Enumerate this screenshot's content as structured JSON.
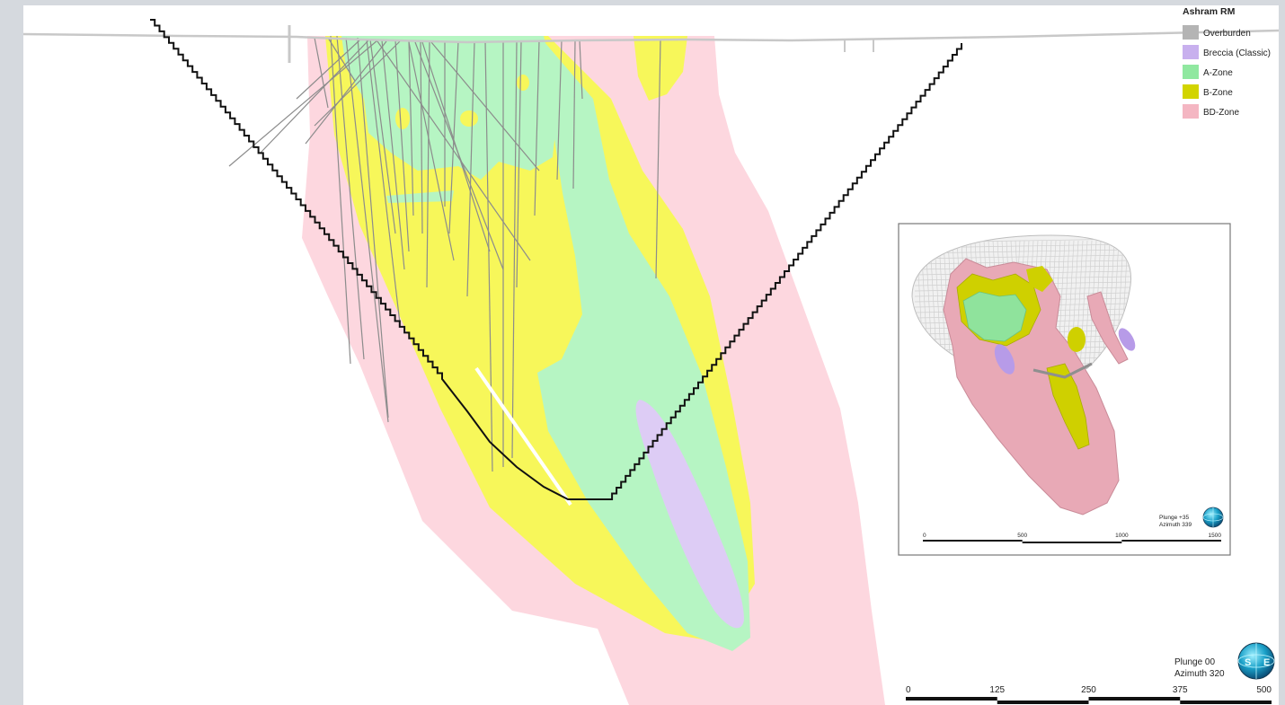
{
  "legend": {
    "title": "Ashram RM",
    "items": [
      {
        "label": "Overburden",
        "color": "#b4b4b4"
      },
      {
        "label": "Breccia (Classic)",
        "color": "#c8b0ee"
      },
      {
        "label": "A-Zone",
        "color": "#90e8a0"
      },
      {
        "label": "B-Zone",
        "color": "#d2d400"
      },
      {
        "label": "BD-Zone",
        "color": "#f4b6c2"
      }
    ]
  },
  "section_colors": {
    "bd_zone": "#fdd7df",
    "b_zone": "#f7f75a",
    "a_zone": "#b6f5c3",
    "breccia": "#ddccf5",
    "pit_shell": "#111111"
  },
  "inset": {
    "plunge": "Plunge +35",
    "azimuth": "Azimuth 339",
    "scale_ticks": [
      "0",
      "500",
      "1000",
      "1500"
    ],
    "compass_icon": "globe-compass-icon"
  },
  "main_view": {
    "plunge": "Plunge 00",
    "azimuth": "Azimuth 320",
    "scale_ticks": [
      "0",
      "125",
      "250",
      "375",
      "500"
    ],
    "compass_icon": "globe-compass-icon"
  }
}
